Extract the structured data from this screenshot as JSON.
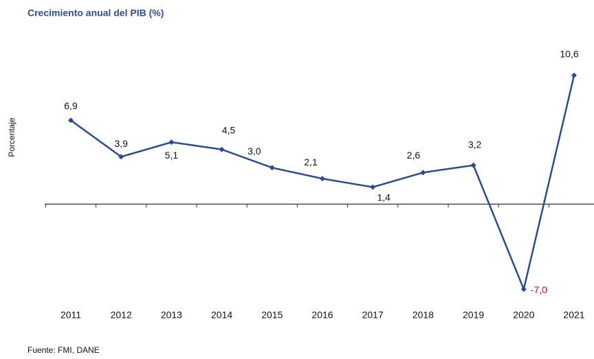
{
  "chart_data": {
    "type": "line",
    "title": "Crecimiento anual del PIB (%)",
    "ylabel": "Porcentaje",
    "source": "Fuente: FMI, DANE",
    "categories": [
      "2011",
      "2012",
      "2013",
      "2014",
      "2015",
      "2016",
      "2017",
      "2018",
      "2019",
      "2020",
      "2021"
    ],
    "series": [
      {
        "name": "PIB",
        "color": "#2b4c8c",
        "values": [
          6.9,
          3.9,
          5.1,
          4.5,
          3.0,
          2.1,
          1.4,
          2.6,
          3.2,
          -7.0,
          10.6
        ],
        "value_labels": [
          "6,9",
          "3,9",
          "5,1",
          "4,5",
          "3,0",
          "2,1",
          "1,4",
          "2,6",
          "3,2",
          "-7,0",
          "10,6"
        ]
      }
    ],
    "ylim": [
      -8,
      12
    ]
  }
}
